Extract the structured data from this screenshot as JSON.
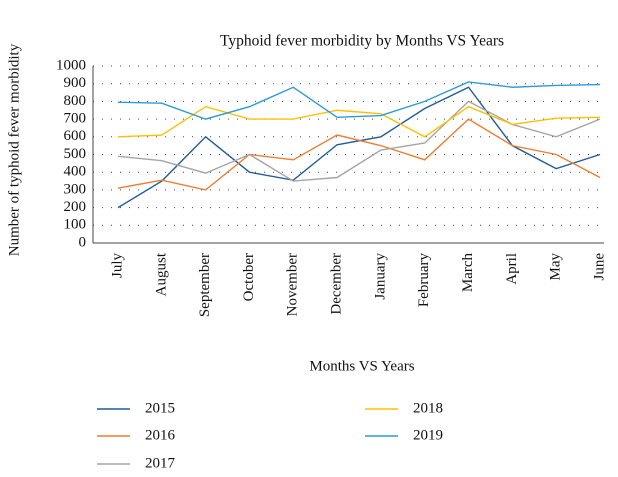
{
  "chart_data": {
    "type": "line",
    "title": "Typhoid fever morbidity by Months VS Years",
    "x_label": "Months VS Years",
    "y_label": "Number of typhoid fever morbidity",
    "categories": [
      "July",
      "August",
      "September",
      "October",
      "November",
      "December",
      "January",
      "February",
      "March",
      "April",
      "May",
      "June"
    ],
    "series": [
      {
        "name": "2015",
        "color": "#1f5c99",
        "values": [
          200,
          350,
          600,
          400,
          355,
          555,
          600,
          760,
          880,
          550,
          420,
          500
        ]
      },
      {
        "name": "2016",
        "color": "#ed7d31",
        "values": [
          310,
          355,
          300,
          500,
          470,
          610,
          550,
          470,
          700,
          550,
          500,
          370
        ]
      },
      {
        "name": "2017",
        "color": "#a5a5a5",
        "values": [
          490,
          465,
          395,
          500,
          350,
          370,
          525,
          565,
          800,
          670,
          600,
          700
        ]
      },
      {
        "name": "2018",
        "color": "#ffc000",
        "values": [
          600,
          610,
          770,
          700,
          700,
          750,
          730,
          600,
          770,
          670,
          705,
          710
        ]
      },
      {
        "name": "2019",
        "color": "#2e9bd6",
        "values": [
          795,
          790,
          700,
          770,
          880,
          710,
          720,
          800,
          910,
          880,
          890,
          895
        ]
      }
    ],
    "ylim": [
      0,
      1000
    ],
    "yticks": [
      0,
      100,
      200,
      300,
      400,
      500,
      600,
      700,
      800,
      900,
      1000
    ],
    "grid": true
  }
}
